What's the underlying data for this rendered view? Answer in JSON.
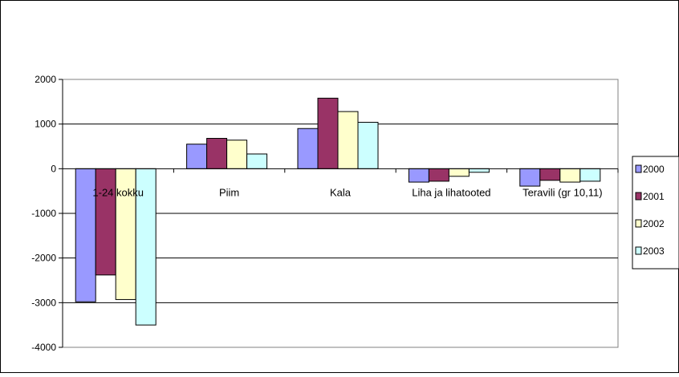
{
  "chart_data": {
    "type": "bar",
    "title": "",
    "xlabel": "",
    "ylabel": "",
    "ylim": [
      -4000,
      2000
    ],
    "yticks": [
      2000,
      1000,
      0,
      -1000,
      -2000,
      -3000,
      -4000
    ],
    "ytick_labels": [
      "2000",
      "1000",
      "0",
      "-1000",
      "-2000",
      "-3000",
      "-4000"
    ],
    "grid": true,
    "legend_position": "right",
    "categories": [
      "1-24 kokku",
      "Piim",
      "Kala",
      "Liha ja lihatooted",
      "Teravili (gr 10,11)"
    ],
    "series": [
      {
        "name": "2000",
        "color": "#9999ff",
        "values": [
          -2980,
          550,
          900,
          -300,
          -390
        ]
      },
      {
        "name": "2001",
        "color": "#993366",
        "values": [
          -2380,
          680,
          1580,
          -280,
          -260
        ]
      },
      {
        "name": "2002",
        "color": "#ffffcc",
        "values": [
          -2930,
          640,
          1280,
          -170,
          -300
        ]
      },
      {
        "name": "2003",
        "color": "#ccffff",
        "values": [
          -3500,
          330,
          1040,
          -80,
          -280
        ]
      }
    ]
  }
}
